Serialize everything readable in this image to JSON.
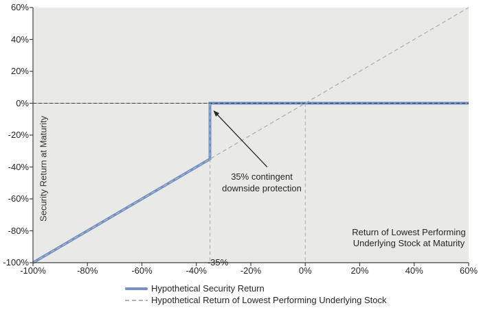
{
  "chart_data": {
    "type": "line",
    "plot_bg": "#e9e9e7",
    "axis_color": "#404040",
    "text_color": "#262626",
    "x_axis": {
      "title_lines": [
        "Return of Lowest Performing",
        "Underlying Stock at Maturity"
      ],
      "range": [
        -100,
        60
      ],
      "ticks": [
        -100,
        -80,
        -60,
        -40,
        -20,
        0,
        20,
        40,
        60
      ],
      "tick_labels": [
        "-100%",
        "-80%",
        "-60%",
        "-40%",
        "-20%",
        "0%",
        "20%",
        "40%",
        "60%"
      ],
      "special_tick": {
        "value": -35,
        "label": "-35%"
      }
    },
    "y_axis": {
      "title": "Security Return at Maturity",
      "range": [
        -100,
        60
      ],
      "ticks": [
        60,
        40,
        20,
        0,
        -20,
        -40,
        -60,
        -80,
        -100
      ],
      "tick_labels": [
        "60%",
        "40%",
        "20%",
        "0%",
        "-20%",
        "-40%",
        "-60%",
        "-80%",
        "-100%"
      ]
    },
    "series": [
      {
        "name": "Hypothetical Security Return",
        "color": "#7191c7",
        "width": 4,
        "dash": null,
        "points": [
          [
            -100,
            -100
          ],
          [
            -35,
            -35
          ],
          [
            -35,
            0
          ],
          [
            60,
            0
          ]
        ]
      },
      {
        "name": "Hypothetical Return of Lowest Performing Underlying Stock",
        "color": "#b3b3b3",
        "width": 1.4,
        "dash": "6 4",
        "points": [
          [
            -100,
            -100
          ],
          [
            60,
            60
          ]
        ]
      }
    ],
    "zero_line": {
      "y": 0,
      "base_color": "#9a9a9a",
      "dash_color": "#3b3b3b",
      "dash": "5 3"
    },
    "reference_lines": [
      {
        "x": -35,
        "y_from": 0,
        "y_to": -100,
        "color": "#b3b3b3",
        "dash": "5 4"
      },
      {
        "x": 0,
        "y_from": 0,
        "y_to": -100,
        "color": "#b3b3b3",
        "dash": "5 4"
      }
    ],
    "annotation": {
      "lines": [
        "35% contingent",
        "downside protection"
      ],
      "arrow_from_xy": [
        -14,
        -40
      ],
      "arrow_to_xy": [
        -33.5,
        -5
      ],
      "arrow_color": "#262626"
    },
    "legend": {
      "items": [
        {
          "label": "Hypothetical Security Return",
          "swatch": "solid-blue"
        },
        {
          "label": "Hypothetical Return of Lowest Performing Underlying Stock",
          "swatch": "dashed-gray"
        }
      ]
    }
  }
}
